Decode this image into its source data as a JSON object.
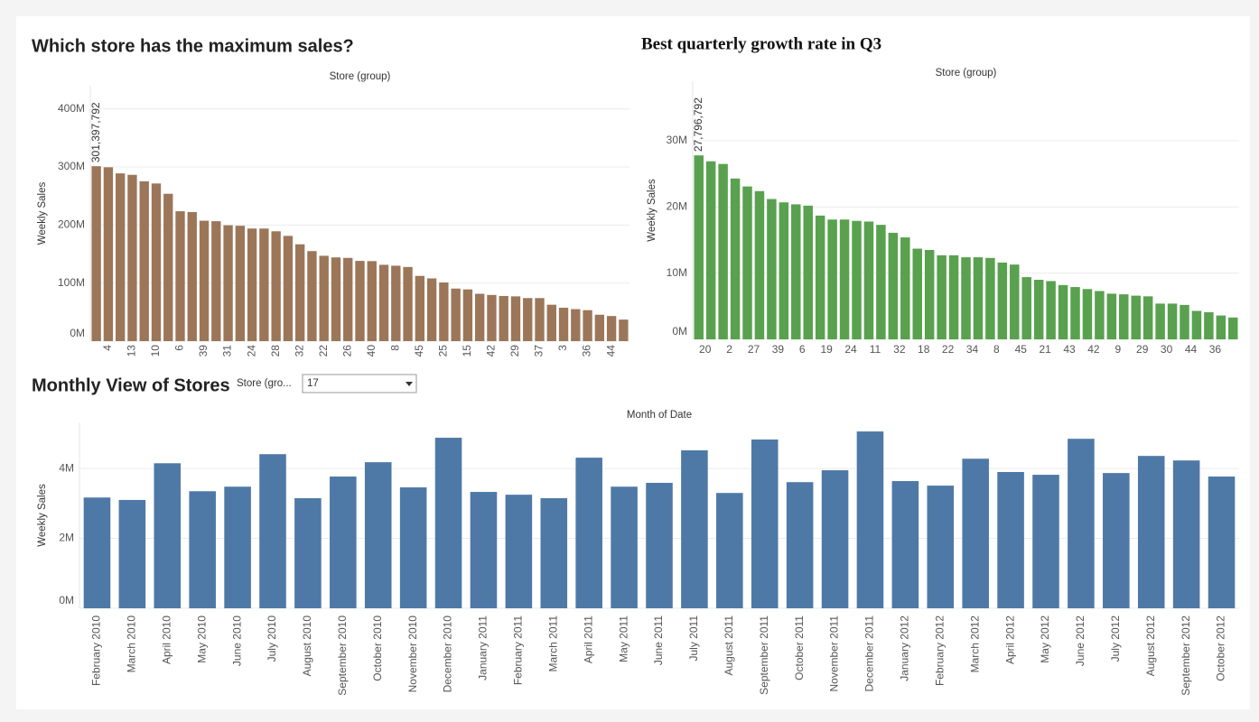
{
  "chart_data": [
    {
      "type": "bar",
      "title": "Which store has the maximum sales?",
      "x_label": "Store (group)",
      "y_label": "Weekly Sales",
      "color": "#9c7659",
      "categories": [
        null,
        "4",
        null,
        "13",
        null,
        "10",
        null,
        "6",
        null,
        "39",
        null,
        "31",
        null,
        "24",
        null,
        "28",
        null,
        "32",
        null,
        "22",
        null,
        "26",
        null,
        "40",
        null,
        "8",
        null,
        "45",
        null,
        "25",
        null,
        "15",
        null,
        "42",
        null,
        "29",
        null,
        "37",
        null,
        "3",
        null,
        "36",
        null,
        "44",
        null
      ],
      "values": [
        301397792,
        299543953,
        288999911,
        286517704,
        275382441,
        271617714,
        253855917,
        223756131,
        222402809,
        207445542,
        206634862,
        199613906,
        198750618,
        194016021,
        193962787,
        189263681,
        181341935,
        166819246,
        155114734,
        147075649,
        144287230,
        143416394,
        138249763,
        137870310,
        131520672,
        129951181,
        127782139,
        112395341,
        108117879,
        101061179,
        90565435,
        89133684,
        81598275,
        79565752,
        77789219,
        77141554,
        74252425,
        74202740,
        62716885,
        57586735,
        55159626,
        53412215,
        45475689,
        43293088,
        37160222
      ],
      "value_labels": [
        "301,397,792",
        null,
        null,
        null,
        null,
        null,
        null,
        null,
        null,
        null,
        null,
        null,
        null,
        null,
        null,
        null,
        null,
        null,
        null,
        null,
        null,
        null,
        null,
        null,
        null,
        null,
        null,
        null,
        null,
        null,
        null,
        null,
        null,
        null,
        null,
        null,
        null,
        null,
        null,
        null,
        null,
        null,
        null,
        null,
        null
      ],
      "ylim": [
        0,
        440000000
      ],
      "yticks": [
        {
          "value": 0,
          "label": "0M"
        },
        {
          "value": 100000000,
          "label": "100M"
        },
        {
          "value": 200000000,
          "label": "200M"
        },
        {
          "value": 300000000,
          "label": "300M"
        },
        {
          "value": 400000000,
          "label": "400M"
        }
      ],
      "grid": true
    },
    {
      "type": "bar",
      "title": "Best quarterly growth rate in Q3",
      "x_label": "Store (group)",
      "y_label": "Weekly Sales",
      "color": "#59a14f",
      "categories": [
        "20",
        null,
        "2",
        null,
        "27",
        null,
        "39",
        null,
        "6",
        null,
        "19",
        null,
        "24",
        null,
        "11",
        null,
        "32",
        null,
        "18",
        null,
        "22",
        null,
        "34",
        null,
        "8",
        null,
        "45",
        null,
        "21",
        null,
        "43",
        null,
        "42",
        null,
        "9",
        null,
        "29",
        null,
        "30",
        null,
        "44",
        null,
        "36",
        null,
        null
      ],
      "values": [
        27796792,
        26900000,
        26500000,
        24300000,
        23100000,
        22400000,
        21200000,
        20700000,
        20400000,
        20200000,
        18700000,
        18100000,
        18100000,
        17900000,
        17800000,
        17300000,
        16100000,
        15400000,
        13700000,
        13500000,
        12700000,
        12700000,
        12400000,
        12400000,
        12300000,
        11600000,
        11300000,
        9400000,
        9000000,
        8800000,
        8200000,
        7900000,
        7600000,
        7300000,
        6900000,
        6800000,
        6600000,
        6500000,
        5400000,
        5400000,
        5200000,
        4300000,
        4100000,
        3600000,
        3300000
      ],
      "value_labels": [
        "27,796,792",
        null,
        null,
        null,
        null,
        null,
        null,
        null,
        null,
        null,
        null,
        null,
        null,
        null,
        null,
        null,
        null,
        null,
        null,
        null,
        null,
        null,
        null,
        null,
        null,
        null,
        null,
        null,
        null,
        null,
        null,
        null,
        null,
        null,
        null,
        null,
        null,
        null,
        null,
        null,
        null,
        null,
        null,
        null,
        null
      ],
      "ylim": [
        0,
        39000000
      ],
      "yticks": [
        {
          "value": 0,
          "label": "0M"
        },
        {
          "value": 10000000,
          "label": "10M"
        },
        {
          "value": 20000000,
          "label": "20M"
        },
        {
          "value": 30000000,
          "label": "30M"
        }
      ],
      "grid": true
    },
    {
      "type": "bar",
      "title": "Monthly View of Stores",
      "x_label": "Month of Date",
      "y_label": "Weekly Sales",
      "color": "#4e79a7",
      "filter": {
        "label": "Store (gro...",
        "value": "17"
      },
      "categories": [
        "February 2010",
        "March 2010",
        "April 2010",
        "May 2010",
        "June 2010",
        "July 2010",
        "August 2010",
        "September 2010",
        "October 2010",
        "November 2010",
        "December 2010",
        "January 2011",
        "February 2011",
        "March 2011",
        "April 2011",
        "May 2011",
        "June 2011",
        "July 2011",
        "August 2011",
        "September 2011",
        "October 2011",
        "November 2011",
        "December 2011",
        "January 2012",
        "February 2012",
        "March 2012",
        "April 2012",
        "May 2012",
        "June 2012",
        "July 2012",
        "August 2012",
        "September 2012",
        "October 2012"
      ],
      "values": [
        3170000,
        3100000,
        4150000,
        3350000,
        3480000,
        4410000,
        3150000,
        3770000,
        4180000,
        3460000,
        4880000,
        3330000,
        3250000,
        3150000,
        4310000,
        3480000,
        3590000,
        4520000,
        3300000,
        4830000,
        3610000,
        3950000,
        5060000,
        3640000,
        3510000,
        4280000,
        3900000,
        3820000,
        4850000,
        3870000,
        4360000,
        4230000,
        3770000
      ],
      "ylim": [
        0,
        5320000
      ],
      "yticks": [
        {
          "value": 0,
          "label": "0M"
        },
        {
          "value": 2000000,
          "label": "2M"
        },
        {
          "value": 4000000,
          "label": "4M"
        }
      ],
      "grid": true
    }
  ]
}
